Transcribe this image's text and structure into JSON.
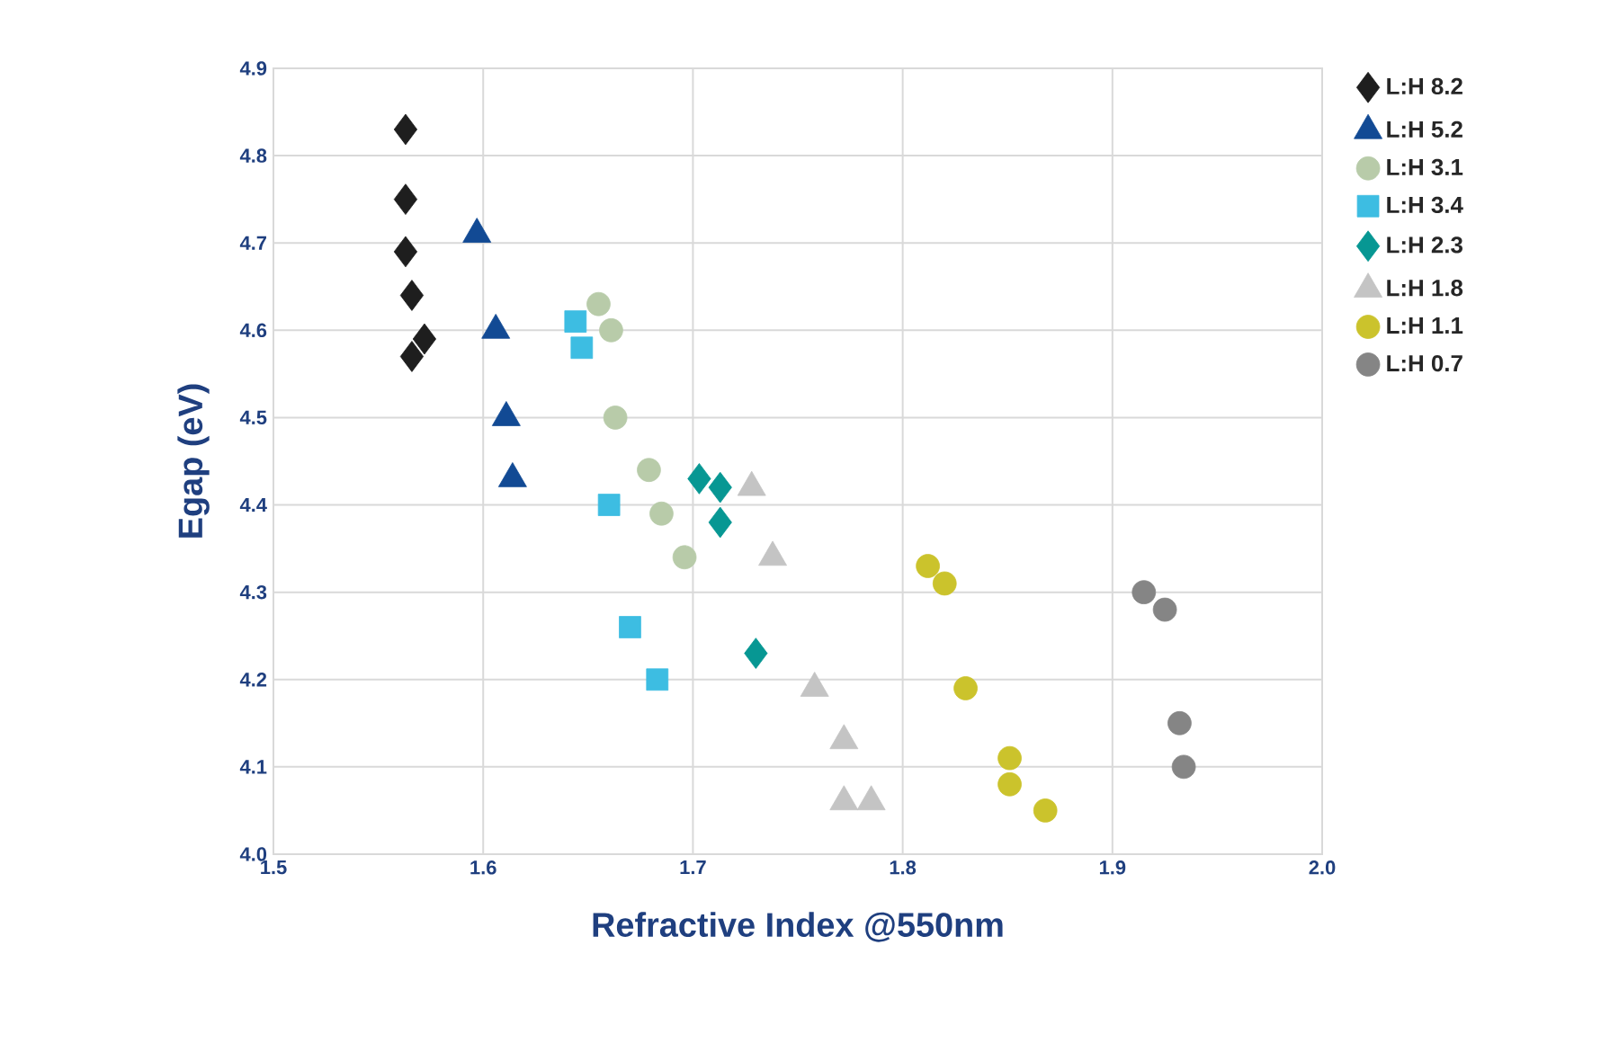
{
  "chart_data": {
    "type": "scatter",
    "xlabel": "Refractive Index @550nm",
    "ylabel": "Egap (eV)",
    "xlim": [
      1.5,
      2.0
    ],
    "xticks": [
      1.5,
      1.6,
      1.7,
      1.8,
      1.9,
      {
        "value": 2.0,
        "label": "2.0"
      }
    ],
    "ylim": [
      4.0,
      4.9
    ],
    "yticks": [
      {
        "value": 4.0,
        "label": "4.0"
      },
      4.1,
      4.2,
      4.3,
      4.4,
      4.5,
      4.6,
      4.7,
      4.8,
      4.9
    ],
    "grid": true,
    "legend": "right",
    "series": [
      {
        "name": "L:H 8.2",
        "color": "#1e1e1e",
        "marker": "diamond",
        "x": [
          1.563,
          1.563,
          1.563,
          1.566,
          1.572,
          1.566
        ],
        "values": [
          4.83,
          4.75,
          4.69,
          4.64,
          4.59,
          4.57
        ]
      },
      {
        "name": "L:H 5.2",
        "color": "#124a94",
        "marker": "triangle",
        "x": [
          1.597,
          1.606,
          1.611,
          1.614
        ],
        "values": [
          4.71,
          4.6,
          4.5,
          4.43
        ]
      },
      {
        "name": "L:H 3.1",
        "color": "#b8cba9",
        "marker": "circle",
        "x": [
          1.655,
          1.661,
          1.663,
          1.679,
          1.685,
          1.696
        ],
        "values": [
          4.63,
          4.6,
          4.5,
          4.44,
          4.39,
          4.34
        ]
      },
      {
        "name": "L:H 3.4",
        "color": "#3dbde2",
        "marker": "square",
        "x": [
          1.644,
          1.647,
          1.66,
          1.67,
          1.683
        ],
        "values": [
          4.61,
          4.58,
          4.4,
          4.26,
          4.2
        ]
      },
      {
        "name": "L:H 2.3",
        "color": "#079793",
        "marker": "diamond",
        "x": [
          1.703,
          1.713,
          1.713,
          1.73
        ],
        "values": [
          4.43,
          4.42,
          4.38,
          4.23
        ]
      },
      {
        "name": "L:H 1.8",
        "color": "#c4c4c4",
        "marker": "triangle",
        "x": [
          1.728,
          1.738,
          1.758,
          1.772,
          1.772,
          1.785
        ],
        "values": [
          4.42,
          4.34,
          4.19,
          4.13,
          4.06,
          4.06
        ]
      },
      {
        "name": "L:H 1.1",
        "color": "#cbc32c",
        "marker": "circle",
        "x": [
          1.812,
          1.82,
          1.83,
          1.851,
          1.851,
          1.868
        ],
        "values": [
          4.33,
          4.31,
          4.19,
          4.11,
          4.08,
          4.05
        ]
      },
      {
        "name": "L:H 0.7",
        "color": "#858585",
        "marker": "circle",
        "x": [
          1.915,
          1.925,
          1.932,
          1.934
        ],
        "values": [
          4.3,
          4.28,
          4.15,
          4.1
        ]
      }
    ]
  }
}
